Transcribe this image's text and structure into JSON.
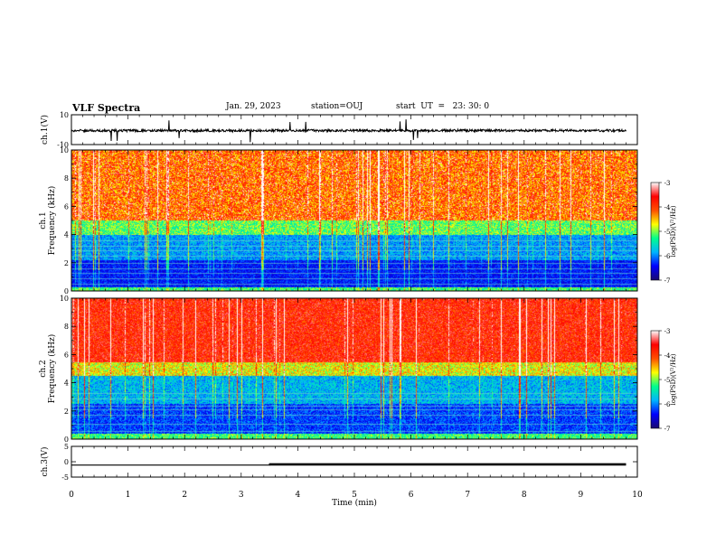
{
  "header": {
    "title": "VLF Spectra",
    "date": "Jan. 29, 2023",
    "station": "station=OUJ",
    "start": "start  UT  =   23: 30: 0"
  },
  "chart_data": [
    {
      "type": "line",
      "id": "ch1-waveform",
      "ylabel": "ch.1(V)",
      "ylim": [
        -10,
        10
      ],
      "yticks": [
        "10",
        "-10"
      ],
      "xlim": [
        0,
        10
      ],
      "description_series": "waveform near 0 V with occasional spikes"
    },
    {
      "type": "heatmap",
      "id": "ch1-spectrogram",
      "ylabel": "ch.1\nFrequency  (kHz)",
      "ylabel_lines": [
        "ch.1",
        "Frequency  (kHz)"
      ],
      "ylim": [
        0,
        10
      ],
      "yticks": [
        "0",
        "2",
        "4",
        "6",
        "8",
        "10"
      ],
      "xlim": [
        0,
        10
      ],
      "colorbar": {
        "label": "log(PSD)(V²/Hz)",
        "ticks": [
          "-3",
          "-4",
          "-5",
          "-6",
          "-7"
        ],
        "range": [
          -7,
          -3
        ]
      }
    },
    {
      "type": "heatmap",
      "id": "ch2-spectrogram",
      "ylabel_lines": [
        "ch.2",
        "Frequency  (kHz)"
      ],
      "ylim": [
        0,
        10
      ],
      "yticks": [
        "0",
        "2",
        "4",
        "6",
        "8",
        "10"
      ],
      "xlim": [
        0,
        10
      ],
      "colorbar": {
        "label": "log(PSD)(V²/Hz)",
        "ticks": [
          "-3",
          "-4",
          "-5",
          "-6",
          "-7"
        ],
        "range": [
          -7,
          -3
        ]
      }
    },
    {
      "type": "line",
      "id": "ch3-signal",
      "ylabel": "ch.3(V)",
      "ylim": [
        -5,
        5
      ],
      "yticks": [
        "5",
        "0",
        "-5"
      ],
      "xlim": [
        0,
        10
      ],
      "xlabel": "Time  (min)",
      "xticks": [
        "0",
        "1",
        "2",
        "3",
        "4",
        "5",
        "6",
        "7",
        "8",
        "9",
        "10"
      ],
      "x": [
        0,
        3.5,
        3.5,
        9.8
      ],
      "y": [
        -1.1,
        -1.1,
        -0.7,
        -0.7
      ]
    }
  ],
  "colors": {
    "scale": [
      "#1a0a6e",
      "#0000ff",
      "#00b4ff",
      "#00ff8c",
      "#ffff00",
      "#ff5000",
      "#ff0000",
      "#ffffff"
    ]
  }
}
